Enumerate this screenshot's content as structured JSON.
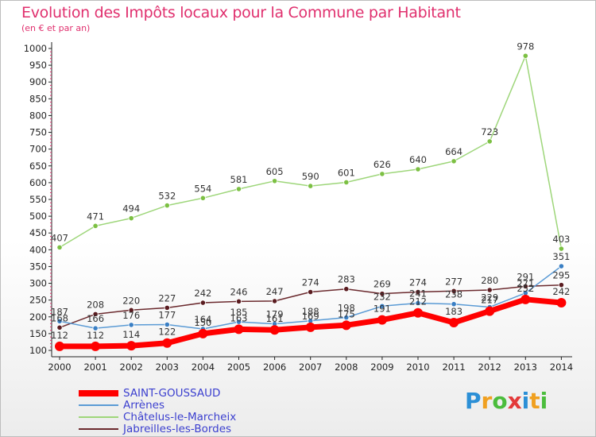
{
  "chart_data": {
    "type": "line",
    "title": "Evolution des Impôts locaux pour la Commune par Habitant",
    "subtitle": "(en € et par an)",
    "x": [
      "2000",
      "2001",
      "2002",
      "2003",
      "2004",
      "2005",
      "2006",
      "2007",
      "2008",
      "2009",
      "2010",
      "2011",
      "2012",
      "2013",
      "2014"
    ],
    "yticks": [
      "100",
      "150",
      "200",
      "250",
      "300",
      "350",
      "400",
      "450",
      "500",
      "550",
      "600",
      "650",
      "700",
      "750",
      "800",
      "850",
      "900",
      "950",
      "1000"
    ],
    "ylim": [
      100,
      1000
    ],
    "series": [
      {
        "name": "Châtelus-le-Marcheix",
        "color": "#9ed67a",
        "marker": "#7cc043",
        "width": 1.5,
        "label_pos": "above",
        "values": [
          407,
          471,
          494,
          532,
          554,
          581,
          605,
          590,
          601,
          626,
          640,
          664,
          723,
          978,
          403
        ],
        "labels": [
          "407",
          "471",
          "494",
          "532",
          "554",
          "581",
          "605",
          "590",
          "601",
          "626",
          "640",
          "664",
          "723",
          "978",
          "403"
        ]
      },
      {
        "name": "Jabreilles-les-Bordes",
        "color": "#6b2a2e",
        "marker": "#5a1c20",
        "width": 1.5,
        "label_pos": "above",
        "values": [
          168,
          208,
          220,
          227,
          242,
          246,
          247,
          274,
          283,
          269,
          274,
          277,
          280,
          291,
          295
        ],
        "labels": [
          "168",
          "208",
          "220",
          "227",
          "242",
          "246",
          "247",
          "274",
          "283",
          "269",
          "274",
          "277",
          "280",
          "291",
          "295"
        ]
      },
      {
        "name": "Arrènes",
        "color": "#5b9bd5",
        "marker": "#3a7fc4",
        "width": 1.5,
        "label_pos": "above",
        "values": [
          187,
          166,
          176,
          177,
          164,
          185,
          179,
          188,
          198,
          232,
          241,
          238,
          229,
          271,
          351
        ],
        "labels": [
          "187",
          "166",
          "176",
          "177",
          "164",
          "185",
          "179",
          "188",
          "198",
          "232",
          "241",
          "238",
          "229",
          "271",
          "351"
        ]
      },
      {
        "name": "SAINT-GOUSSAUD",
        "color": "#ff0000",
        "marker": "#ff0000",
        "width": 7,
        "label_pos": "above",
        "values": [
          112,
          112,
          114,
          122,
          150,
          163,
          161,
          169,
          175,
          191,
          212,
          183,
          217,
          252,
          242
        ],
        "labels": [
          "112",
          "112",
          "114",
          "122",
          "150",
          "163",
          "161",
          "169",
          "175",
          "191",
          "212",
          "183",
          "217",
          "252",
          "242"
        ]
      }
    ],
    "legend": [
      {
        "name": "SAINT-GOUSSAUD",
        "color": "#ff0000",
        "thickness": "thick"
      },
      {
        "name": "Arrènes",
        "color": "#5b9bd5",
        "thickness": "thin"
      },
      {
        "name": "Châtelus-le-Marcheix",
        "color": "#9ed67a",
        "thickness": "thin"
      },
      {
        "name": "Jabreilles-les-Bordes",
        "color": "#6b2a2e",
        "thickness": "thin"
      }
    ],
    "legend_position": "bottom-left",
    "grid": false
  },
  "logo": {
    "letters": [
      "P",
      "r",
      "o",
      "x",
      "i",
      "t",
      "i"
    ],
    "colors": [
      "#2b8fd6",
      "#f0a020",
      "#4bbd3c",
      "#e33a3a",
      "#2b8fd6",
      "#f0a020",
      "#4bbd3c"
    ]
  }
}
